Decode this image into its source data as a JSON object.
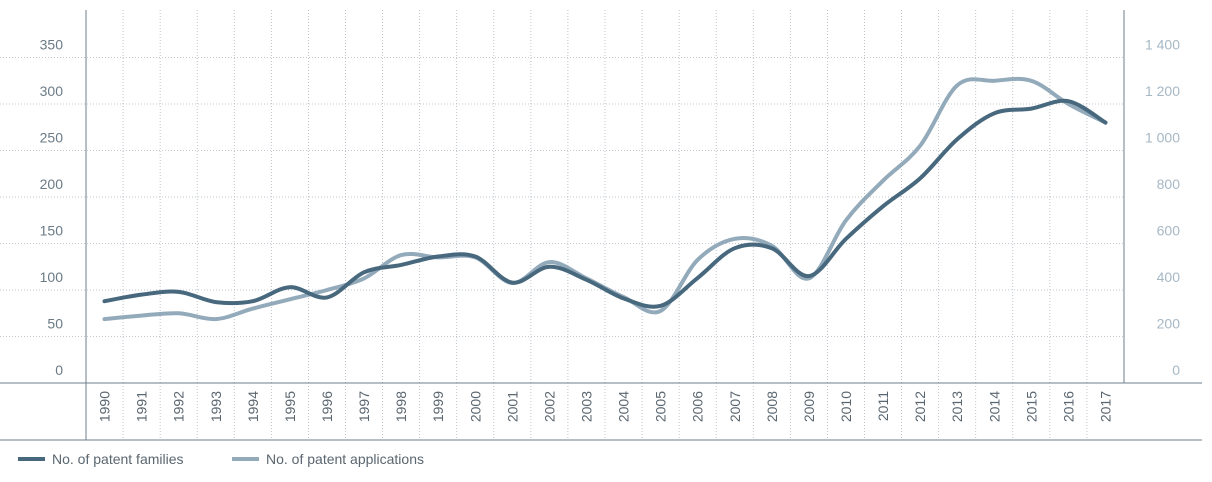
{
  "chart_data": {
    "type": "line",
    "x": [
      "1990",
      "1991",
      "1992",
      "1993",
      "1994",
      "1995",
      "1996",
      "1997",
      "1998",
      "1999",
      "2000",
      "2001",
      "2002",
      "2003",
      "2004",
      "2005",
      "2006",
      "2007",
      "2008",
      "2009",
      "2010",
      "2011",
      "2012",
      "2013",
      "2014",
      "2015",
      "2016",
      "2017"
    ],
    "y_left": {
      "ticks": [
        "0",
        "50",
        "100",
        "150",
        "200",
        "250",
        "300",
        "350"
      ],
      "range": [
        0,
        400
      ]
    },
    "y_right": {
      "ticks": [
        "0",
        "200",
        "400",
        "600",
        "800",
        "1 000",
        "1 200",
        "1 400"
      ],
      "range": [
        0,
        1600
      ]
    },
    "series": [
      {
        "name": "No. of patent families",
        "axis": "left",
        "color": "#47687d",
        "values": [
          88,
          95,
          98,
          87,
          88,
          103,
          92,
          119,
          127,
          136,
          136,
          108,
          125,
          111,
          91,
          83,
          113,
          145,
          145,
          115,
          155,
          190,
          220,
          262,
          290,
          295,
          303,
          280
        ]
      },
      {
        "name": "No. of patent applications",
        "axis": "right",
        "color": "#93aabb",
        "values": [
          275,
          290,
          300,
          275,
          320,
          360,
          400,
          450,
          550,
          540,
          540,
          430,
          520,
          450,
          370,
          310,
          530,
          620,
          590,
          450,
          700,
          870,
          1020,
          1280,
          1300,
          1300,
          1200,
          1120
        ]
      }
    ],
    "grid": true,
    "legend_position": "bottom-left"
  },
  "colors": {
    "axis": "#6e7f8b",
    "grid": "#aeb7be"
  }
}
